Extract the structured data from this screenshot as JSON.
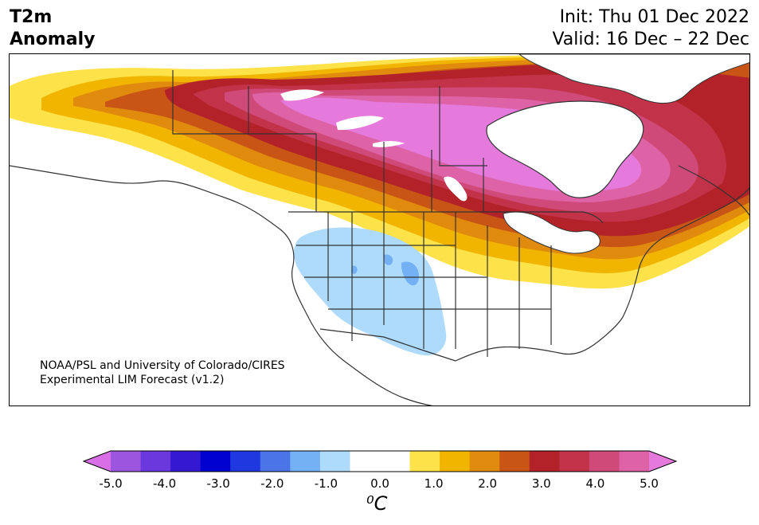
{
  "header": {
    "title_line1": "T2m",
    "title_line2": "Anomaly",
    "init_text": "Init: Thu 01 Dec 2022",
    "valid_text": "Valid: 16 Dec – 22 Dec"
  },
  "map": {
    "credit_line1": "NOAA/PSL and University of Colorado/CIRES",
    "credit_line2": "Experimental LIM Forecast (v1.2)"
  },
  "colorbar": {
    "tick_labels": [
      "-5.0",
      "-4.0",
      "-3.0",
      "-2.0",
      "-1.0",
      "0.0",
      "1.0",
      "2.0",
      "3.0",
      "4.0",
      "5.0"
    ],
    "unit_label": "⁰C",
    "colors": [
      "#d96fe6",
      "#9c55de",
      "#6a38dc",
      "#3518d2",
      "#0000d0",
      "#2038e0",
      "#4a74e8",
      "#74b0f4",
      "#aedbfc",
      "#ffffff",
      "#ffffff",
      "#fde24a",
      "#f1b500",
      "#e08a0e",
      "#c85416",
      "#b22228",
      "#c2334a",
      "#d04a79",
      "#de62a6",
      "#e579dc"
    ]
  }
}
